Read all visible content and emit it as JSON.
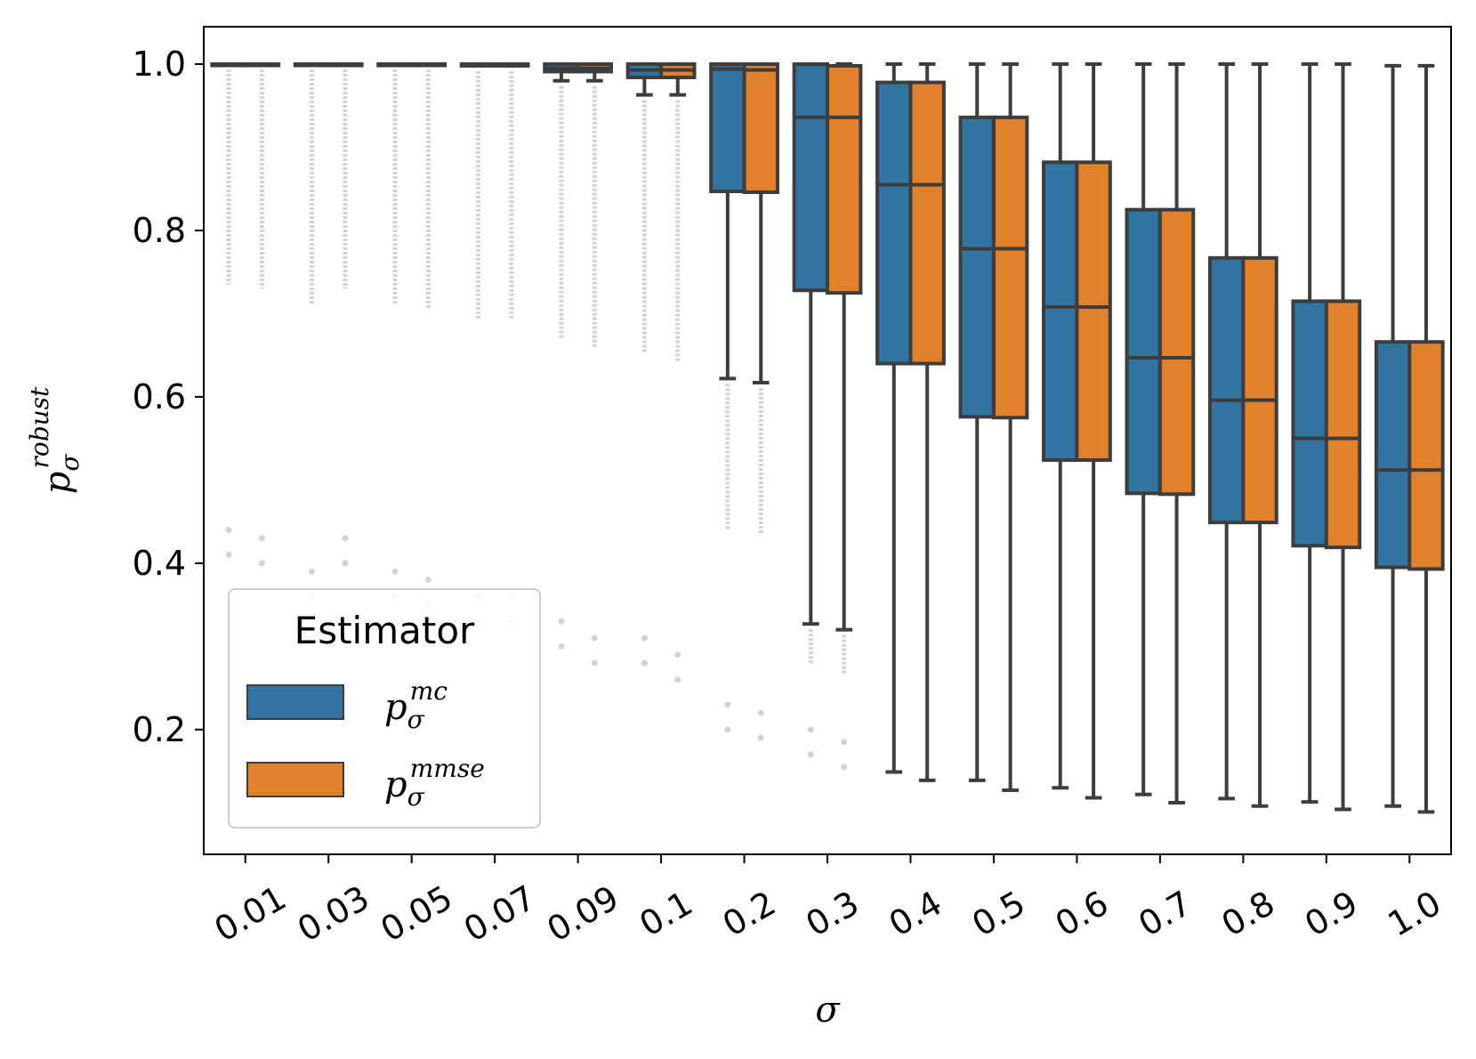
{
  "chart_data": {
    "type": "box",
    "xlabel": "σ",
    "ylabel": {
      "base": "p",
      "sub": "σ",
      "sup": "robust"
    },
    "ylim": [
      0.05,
      1.045
    ],
    "yticks": [
      "0.2",
      "0.4",
      "0.6",
      "0.8",
      "1.0"
    ],
    "categories": [
      "0.01",
      "0.03",
      "0.05",
      "0.07",
      "0.09",
      "0.1",
      "0.2",
      "0.3",
      "0.4",
      "0.5",
      "0.6",
      "0.7",
      "0.8",
      "0.9",
      "1.0"
    ],
    "legend": {
      "title": "Estimator",
      "position": "lower-left",
      "entries": [
        {
          "base": "p",
          "sub": "σ",
          "sup": "mc"
        },
        {
          "base": "p",
          "sub": "σ",
          "sup": "mmse"
        }
      ]
    },
    "series": [
      {
        "name": "mc",
        "color": "#3274a1",
        "boxes": [
          {
            "whislo": 1.0,
            "q1": 1.0,
            "med": 1.0,
            "q3": 1.0,
            "whishi": 1.0,
            "fliers_min": 0.41
          },
          {
            "whislo": 1.0,
            "q1": 1.0,
            "med": 1.0,
            "q3": 1.0,
            "whishi": 1.0,
            "fliers_min": 0.36
          },
          {
            "whislo": 1.0,
            "q1": 1.0,
            "med": 1.0,
            "q3": 1.0,
            "whishi": 1.0,
            "fliers_min": 0.36
          },
          {
            "whislo": 0.998,
            "q1": 0.998,
            "med": 0.999,
            "q3": 1.0,
            "whishi": 1.0,
            "fliers_min": 0.33
          },
          {
            "whislo": 0.98,
            "q1": 0.991,
            "med": 0.995,
            "q3": 1.0,
            "whishi": 1.0,
            "fliers_min": 0.3
          },
          {
            "whislo": 0.963,
            "q1": 0.984,
            "med": 0.993,
            "q3": 1.0,
            "whishi": 1.0,
            "fliers_min": 0.28
          },
          {
            "whislo": 0.622,
            "q1": 0.847,
            "med": 0.994,
            "q3": 1.0,
            "whishi": 1.0,
            "fliers_min": 0.2
          },
          {
            "whislo": 0.327,
            "q1": 0.728,
            "med": 0.936,
            "q3": 1.0,
            "whishi": 1.0,
            "fliers_min": 0.17
          },
          {
            "whislo": 0.149,
            "q1": 0.64,
            "med": 0.855,
            "q3": 0.978,
            "whishi": 1.0
          },
          {
            "whislo": 0.139,
            "q1": 0.576,
            "med": 0.778,
            "q3": 0.936,
            "whishi": 1.0
          },
          {
            "whislo": 0.13,
            "q1": 0.524,
            "med": 0.708,
            "q3": 0.882,
            "whishi": 1.0
          },
          {
            "whislo": 0.122,
            "q1": 0.484,
            "med": 0.647,
            "q3": 0.825,
            "whishi": 1.0
          },
          {
            "whislo": 0.117,
            "q1": 0.449,
            "med": 0.596,
            "q3": 0.767,
            "whishi": 1.0
          },
          {
            "whislo": 0.113,
            "q1": 0.421,
            "med": 0.55,
            "q3": 0.715,
            "whishi": 1.0
          },
          {
            "whislo": 0.108,
            "q1": 0.395,
            "med": 0.512,
            "q3": 0.666,
            "whishi": 0.998
          }
        ]
      },
      {
        "name": "mmse",
        "color": "#e1812c",
        "boxes": [
          {
            "whislo": 1.0,
            "q1": 1.0,
            "med": 1.0,
            "q3": 1.0,
            "whishi": 1.0,
            "fliers_min": 0.4
          },
          {
            "whislo": 1.0,
            "q1": 1.0,
            "med": 1.0,
            "q3": 1.0,
            "whishi": 1.0,
            "fliers_min": 0.4
          },
          {
            "whislo": 1.0,
            "q1": 1.0,
            "med": 1.0,
            "q3": 1.0,
            "whishi": 1.0,
            "fliers_min": 0.35
          },
          {
            "whislo": 0.998,
            "q1": 0.998,
            "med": 0.999,
            "q3": 1.0,
            "whishi": 1.0,
            "fliers_min": 0.33
          },
          {
            "whislo": 0.98,
            "q1": 0.991,
            "med": 0.995,
            "q3": 1.0,
            "whishi": 1.0,
            "fliers_min": 0.28
          },
          {
            "whislo": 0.963,
            "q1": 0.984,
            "med": 0.993,
            "q3": 1.0,
            "whishi": 1.0,
            "fliers_min": 0.26
          },
          {
            "whislo": 0.617,
            "q1": 0.846,
            "med": 0.993,
            "q3": 1.0,
            "whishi": 1.0,
            "fliers_min": 0.19
          },
          {
            "whislo": 0.32,
            "q1": 0.725,
            "med": 0.936,
            "q3": 0.998,
            "whishi": 1.0,
            "fliers_min": 0.155
          },
          {
            "whislo": 0.139,
            "q1": 0.64,
            "med": 0.855,
            "q3": 0.978,
            "whishi": 1.0
          },
          {
            "whislo": 0.127,
            "q1": 0.575,
            "med": 0.778,
            "q3": 0.936,
            "whishi": 1.0
          },
          {
            "whislo": 0.118,
            "q1": 0.524,
            "med": 0.708,
            "q3": 0.882,
            "whishi": 1.0
          },
          {
            "whislo": 0.112,
            "q1": 0.483,
            "med": 0.647,
            "q3": 0.825,
            "whishi": 1.0
          },
          {
            "whislo": 0.108,
            "q1": 0.449,
            "med": 0.596,
            "q3": 0.767,
            "whishi": 1.0
          },
          {
            "whislo": 0.104,
            "q1": 0.419,
            "med": 0.55,
            "q3": 0.715,
            "whishi": 1.0
          },
          {
            "whislo": 0.101,
            "q1": 0.393,
            "med": 0.512,
            "q3": 0.666,
            "whishi": 0.998
          }
        ]
      }
    ]
  }
}
